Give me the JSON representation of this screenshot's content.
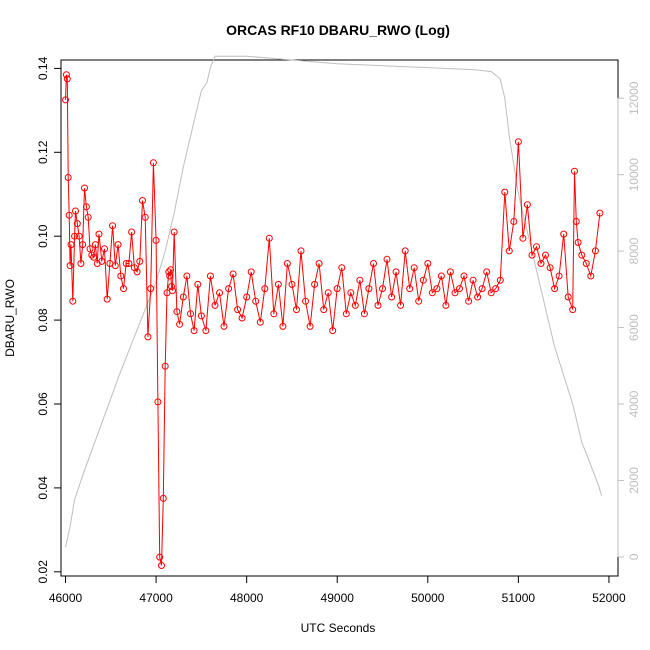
{
  "chart_data": {
    "type": "line",
    "title": "ORCAS RF10 DBARU_RWO (Log)",
    "xlabel": "UTC Seconds",
    "ylabel": "DBARU_RWO",
    "xlim": [
      45950,
      52100
    ],
    "ylim": [
      0.019,
      0.142
    ],
    "y2lim": [
      -500,
      13000
    ],
    "x_ticks": [
      46000,
      47000,
      48000,
      49000,
      50000,
      51000,
      52000
    ],
    "y_ticks": [
      0.02,
      0.04,
      0.06,
      0.08,
      0.1,
      0.12,
      0.14
    ],
    "y2_ticks": [
      0,
      2000,
      4000,
      6000,
      8000,
      10000,
      12000
    ],
    "grid": false,
    "colors": {
      "series": "#ff0000",
      "altitude": "#bebebe",
      "axis": "#000000"
    },
    "series": [
      {
        "marker": "open-circle",
        "x": [
          46000,
          46010,
          46020,
          46030,
          46040,
          46050,
          46060,
          46080,
          46100,
          46110,
          46130,
          46150,
          46170,
          46190,
          46210,
          46230,
          46250,
          46270,
          46290,
          46310,
          46330,
          46350,
          46370,
          46400,
          46430,
          46460,
          46490,
          46520,
          46550,
          46580,
          46610,
          46640,
          46670,
          46700,
          46730,
          46760,
          46790,
          46820,
          46850,
          46880,
          46910,
          46940,
          46970,
          47000,
          47020,
          47040,
          47060,
          47080,
          47100,
          47120,
          47140,
          47150,
          47160,
          47170,
          47180,
          47200,
          47230,
          47260,
          47300,
          47340,
          47380,
          47420,
          47460,
          47500,
          47550,
          47600,
          47650,
          47700,
          47750,
          47800,
          47850,
          47900,
          47950,
          48000,
          48050,
          48100,
          48150,
          48200,
          48250,
          48300,
          48350,
          48400,
          48450,
          48500,
          48550,
          48600,
          48650,
          48700,
          48750,
          48800,
          48850,
          48900,
          48950,
          49000,
          49050,
          49100,
          49150,
          49200,
          49250,
          49300,
          49350,
          49400,
          49450,
          49500,
          49550,
          49600,
          49650,
          49700,
          49750,
          49800,
          49850,
          49900,
          49950,
          50000,
          50050,
          50100,
          50150,
          50200,
          50250,
          50300,
          50350,
          50400,
          50450,
          50500,
          50550,
          50600,
          50650,
          50700,
          50750,
          50800,
          50850,
          50900,
          50950,
          51000,
          51050,
          51100,
          51150,
          51200,
          51250,
          51300,
          51350,
          51400,
          51450,
          51500,
          51550,
          51600,
          51620,
          51640,
          51660,
          51700,
          51750,
          51800,
          51850,
          51900
        ],
        "y": [
          0.1325,
          0.1385,
          0.1375,
          0.114,
          0.105,
          0.093,
          0.098,
          0.0845,
          0.1,
          0.106,
          0.103,
          0.1,
          0.0935,
          0.098,
          0.1115,
          0.107,
          0.1045,
          0.097,
          0.0955,
          0.095,
          0.098,
          0.0935,
          0.1005,
          0.094,
          0.097,
          0.085,
          0.0935,
          0.1025,
          0.093,
          0.098,
          0.0905,
          0.0875,
          0.0935,
          0.0935,
          0.101,
          0.0925,
          0.0915,
          0.094,
          0.1085,
          0.1045,
          0.076,
          0.0875,
          0.1175,
          0.099,
          0.0605,
          0.0235,
          0.0215,
          0.0375,
          0.069,
          0.0865,
          0.0915,
          0.0905,
          0.092,
          0.088,
          0.087,
          0.101,
          0.082,
          0.079,
          0.0855,
          0.0905,
          0.0815,
          0.0775,
          0.0885,
          0.081,
          0.0775,
          0.0905,
          0.0835,
          0.0865,
          0.0785,
          0.0875,
          0.091,
          0.0825,
          0.0805,
          0.0855,
          0.0915,
          0.0845,
          0.0795,
          0.0875,
          0.0995,
          0.0815,
          0.0885,
          0.0785,
          0.0935,
          0.0885,
          0.0825,
          0.0965,
          0.0845,
          0.0785,
          0.0885,
          0.0935,
          0.0825,
          0.0865,
          0.0775,
          0.0875,
          0.0925,
          0.0815,
          0.0865,
          0.0835,
          0.0895,
          0.0815,
          0.0875,
          0.0935,
          0.0835,
          0.0875,
          0.0945,
          0.0855,
          0.0915,
          0.0835,
          0.0965,
          0.0875,
          0.0925,
          0.0845,
          0.0895,
          0.0935,
          0.0865,
          0.0875,
          0.0905,
          0.0835,
          0.0915,
          0.0865,
          0.0875,
          0.0905,
          0.0845,
          0.0895,
          0.0855,
          0.0875,
          0.0915,
          0.0865,
          0.0875,
          0.0895,
          0.1105,
          0.0965,
          0.1035,
          0.1225,
          0.0995,
          0.1075,
          0.0955,
          0.0975,
          0.0935,
          0.0955,
          0.0925,
          0.0875,
          0.0905,
          0.1005,
          0.0855,
          0.0825,
          0.1155,
          0.1035,
          0.0985,
          0.0955,
          0.0935,
          0.0905,
          0.0965,
          0.1055
        ]
      },
      {
        "name": "",
        "axis": "right",
        "x": [
          46000,
          46050,
          46100,
          46200,
          46400,
          46600,
          46800,
          47000,
          47100,
          47200,
          47300,
          47400,
          47500,
          47560,
          47600,
          47650,
          48000,
          48500,
          49000,
          49500,
          50000,
          50500,
          50700,
          50800,
          50850,
          50900,
          51000,
          51200,
          51400,
          51600,
          51700,
          51800,
          51880,
          51920
        ],
        "y": [
          250,
          800,
          1500,
          2200,
          3500,
          4800,
          6000,
          7200,
          8000,
          9000,
          10200,
          11200,
          12200,
          12400,
          12800,
          13100,
          13100,
          13000,
          12900,
          12850,
          12800,
          12750,
          12700,
          12500,
          12000,
          11000,
          9500,
          7500,
          5500,
          4000,
          3000,
          2400,
          1900,
          1600
        ]
      }
    ]
  }
}
